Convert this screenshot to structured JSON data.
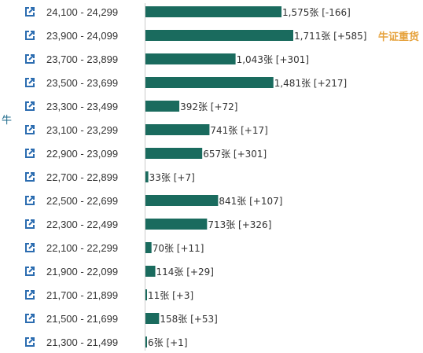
{
  "side_label": "牛",
  "tag_label": "牛证重货",
  "colors": {
    "bar": "#1a6b5e",
    "icon": "#2b6cb0",
    "axis": "#cccccc",
    "text": "#333333",
    "tag": "#e6a23c"
  },
  "chart_data": {
    "type": "bar",
    "orientation": "horizontal",
    "categories": [
      "24,100 - 24,299",
      "23,900 - 24,099",
      "23,700 - 23,899",
      "23,500 - 23,699",
      "23,300 - 23,499",
      "23,100 - 23,299",
      "22,900 - 23,099",
      "22,700 - 22,899",
      "22,500 - 22,699",
      "22,300 - 22,499",
      "22,100 - 22,299",
      "21,900 - 22,099",
      "21,700 - 21,899",
      "21,500 - 21,699",
      "21,300 - 21,499"
    ],
    "values": [
      1575,
      1711,
      1043,
      1481,
      392,
      741,
      657,
      33,
      841,
      713,
      70,
      114,
      11,
      158,
      6
    ],
    "labels": [
      "1,575张 [-166]",
      "1,711张 [+585]",
      "1,043张 [+301]",
      "1,481张 [+217]",
      "392张 [+72]",
      "741张 [+17]",
      "657张 [+301]",
      "33张 [+7]",
      "841张 [+107]",
      "713张 [+326]",
      "70张 [+11]",
      "114张 [+29]",
      "11张 [+3]",
      "158张 [+53]",
      "6张 [+1]"
    ],
    "highlight_index": 1,
    "title": "",
    "xlabel": "",
    "ylabel": ""
  }
}
